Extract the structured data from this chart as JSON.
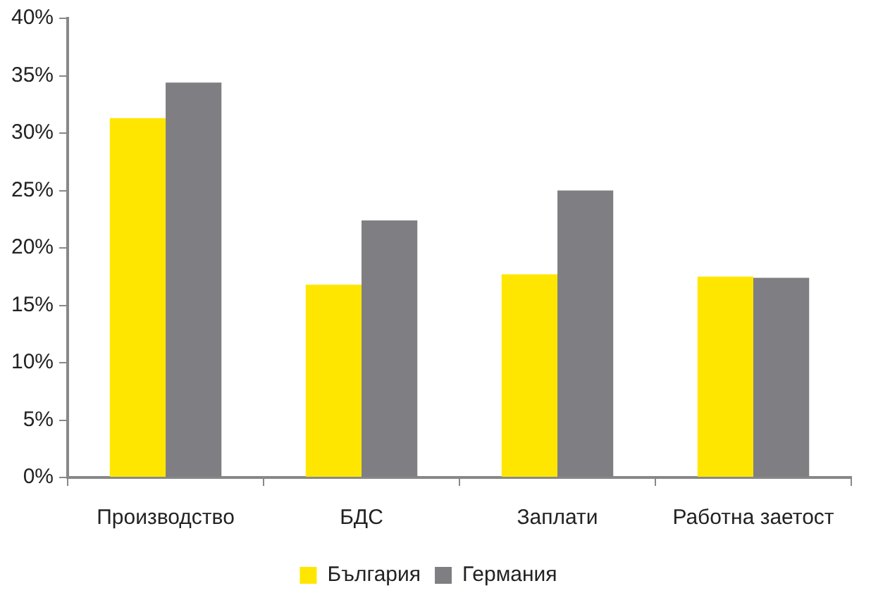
{
  "chart_data": {
    "type": "bar",
    "categories": [
      "Производство",
      "БДС",
      "Заплати",
      "Работна заетост"
    ],
    "series": [
      {
        "name": "България",
        "color": "#ffe600",
        "values": [
          31.3,
          16.8,
          17.7,
          17.5
        ]
      },
      {
        "name": "Германия",
        "color": "#7f7e83",
        "values": [
          34.4,
          22.4,
          25.0,
          17.4
        ]
      }
    ],
    "ylim": [
      0,
      40
    ],
    "yticks": [
      {
        "value": 0,
        "label": "0%"
      },
      {
        "value": 5,
        "label": "5%"
      },
      {
        "value": 10,
        "label": "10%"
      },
      {
        "value": 15,
        "label": "15%"
      },
      {
        "value": 20,
        "label": "20%"
      },
      {
        "value": 25,
        "label": "25%"
      },
      {
        "value": 30,
        "label": "30%"
      },
      {
        "value": 35,
        "label": "35%"
      },
      {
        "value": 40,
        "label": "40%"
      }
    ],
    "grid": false,
    "legend": "bottom"
  }
}
